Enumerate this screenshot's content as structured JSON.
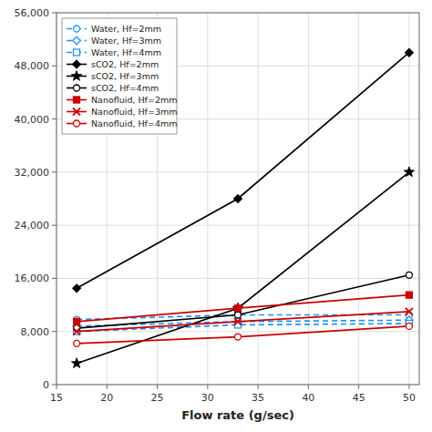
{
  "chart_data": {
    "type": "line",
    "x_label": "Flow rate (g/sec)",
    "x": [
      17,
      33,
      50
    ],
    "series": [
      {
        "name": "Water, Hf=2mm",
        "color": "#2196F3",
        "line_style": "dashed",
        "marker": "circle-open",
        "values": [
          9800,
          10500,
          10500
        ]
      },
      {
        "name": "Water, Hf=3mm",
        "color": "#2196F3",
        "line_style": "dashed",
        "marker": "diamond-open",
        "values": [
          8800,
          9500,
          9700
        ]
      },
      {
        "name": "Water, Hf=4mm",
        "color": "#2196F3",
        "line_style": "dashed",
        "marker": "square-open",
        "values": [
          8000,
          9000,
          9200
        ]
      },
      {
        "name": "sCO2, Hf=2mm",
        "color": "#000000",
        "line_style": "solid",
        "marker": "diamond",
        "values": [
          14500,
          28000,
          50000
        ]
      },
      {
        "name": "sCO2, Hf=3mm",
        "color": "#000000",
        "line_style": "solid",
        "marker": "star",
        "values": [
          3200,
          11500,
          32000
        ]
      },
      {
        "name": "sCO2, Hf=4mm",
        "color": "#000000",
        "line_style": "solid",
        "marker": "circle-open",
        "values": [
          8500,
          10500,
          16500
        ]
      },
      {
        "name": "Nanofluid, Hf=2mm",
        "color": "#cc0000",
        "line_style": "solid",
        "marker": "square",
        "values": [
          9500,
          11500,
          13500
        ]
      },
      {
        "name": "Nanofluid, Hf=3mm",
        "color": "#cc0000",
        "line_style": "solid",
        "marker": "x",
        "values": [
          8000,
          9500,
          11000
        ]
      },
      {
        "name": "Nanofluid, Hf=4mm",
        "color": "#cc0000",
        "line_style": "solid",
        "marker": "circle-open",
        "values": [
          6200,
          7200,
          8800
        ]
      }
    ],
    "xlim": [
      15,
      51
    ],
    "xticks": [
      15,
      20,
      25,
      30,
      35,
      40,
      45,
      50
    ],
    "ylim": [
      0,
      56000
    ],
    "yticks": [
      0,
      {
        "value": 8000,
        "label": "8,000"
      },
      {
        "value": 16000,
        "label": "16,000"
      },
      {
        "value": 24000,
        "label": "24,000"
      },
      {
        "value": 32000,
        "label": "32,000"
      },
      {
        "value": 40000,
        "label": "40,000"
      },
      {
        "value": 48000,
        "label": "48,000"
      },
      {
        "value": 56000,
        "label": "56,000"
      }
    ],
    "grid": true,
    "legend": "upper-left"
  }
}
